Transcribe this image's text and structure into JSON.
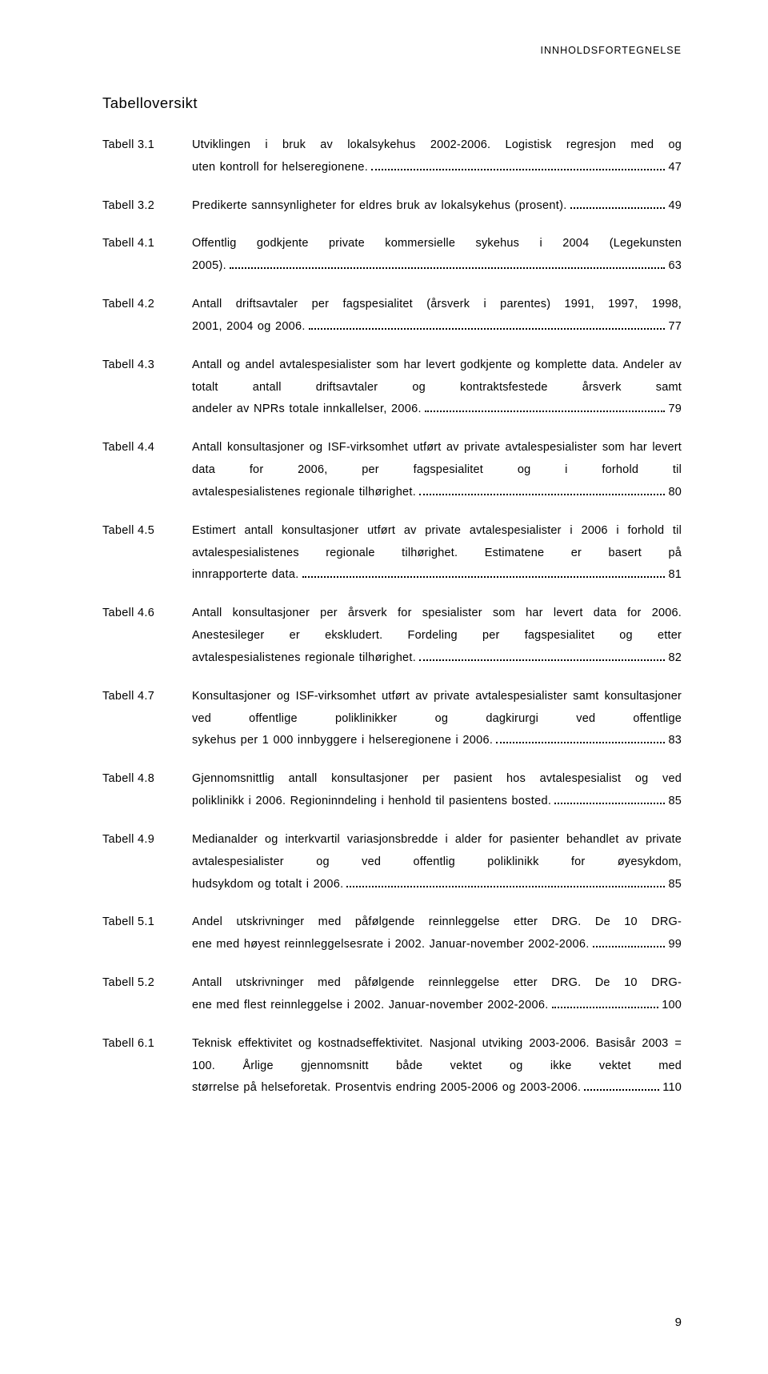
{
  "header": "INNHOLDSFORTEGNELSE",
  "section_title": "Tabelloversikt",
  "page_number": "9",
  "entries": [
    {
      "label": "Tabell 3.1",
      "body": "Utviklingen i bruk av lokalsykehus 2002-2006. Logistisk regresjon med og",
      "last": "uten kontroll for helseregionene.",
      "page": "47"
    },
    {
      "label": "Tabell 3.2",
      "body": "",
      "last": "Predikerte sannsynligheter for eldres bruk av lokalsykehus (prosent).",
      "page": "49"
    },
    {
      "label": "Tabell 4.1",
      "body": "Offentlig godkjente private kommersielle sykehus i 2004 (Legekunsten",
      "last": "2005).",
      "page": "63"
    },
    {
      "label": "Tabell 4.2",
      "body": "Antall driftsavtaler per fagspesialitet (årsverk i parentes) 1991, 1997, 1998,",
      "last": "2001, 2004 og 2006.",
      "page": "77"
    },
    {
      "label": "Tabell 4.3",
      "body": "Antall og andel avtalespesialister som har levert godkjente og komplette data. Andeler av totalt antall driftsavtaler og kontraktsfestede årsverk samt",
      "last": "andeler av NPRs totale innkallelser, 2006. ",
      "page": "79"
    },
    {
      "label": "Tabell 4.4",
      "body": "Antall konsultasjoner og ISF-virksomhet utført av private avtalespesialister som har levert data for 2006, per fagspesialitet og i forhold til",
      "last": "avtalespesialistenes regionale tilhørighet.",
      "page": "80"
    },
    {
      "label": "Tabell 4.5",
      "body": "Estimert antall konsultasjoner utført av private avtalespesialister i 2006 i forhold til avtalespesialistenes regionale tilhørighet. Estimatene er basert på",
      "last": "innrapporterte data.",
      "page": "81"
    },
    {
      "label": "Tabell 4.6",
      "body": "Antall konsultasjoner per årsverk for spesialister som har levert data for 2006. Anestesileger er ekskludert. Fordeling per fagspesialitet og etter",
      "last": "avtalespesialistenes regionale tilhørighet.",
      "page": "82"
    },
    {
      "label": "Tabell 4.7",
      "body": "Konsultasjoner og ISF-virksomhet utført av private avtalespesialister samt konsultasjoner ved offentlige poliklinikker og dagkirurgi ved offentlige",
      "last": "sykehus per 1 000 innbyggere i helseregionene i 2006.",
      "page": "83"
    },
    {
      "label": "Tabell 4.8",
      "body": "Gjennomsnittlig antall konsultasjoner per pasient hos avtalespesialist og ved",
      "last": "poliklinikk i 2006. Regioninndeling i henhold til pasientens bosted.",
      "page": "85"
    },
    {
      "label": "Tabell 4.9",
      "body": "Medianalder og interkvartil variasjonsbredde i alder for pasienter behandlet av private avtalespesialister og ved offentlig poliklinikk for øyesykdom,",
      "last": "hudsykdom og totalt i 2006.",
      "page": "85"
    },
    {
      "label": "Tabell 5.1",
      "body": "Andel utskrivninger med påfølgende reinnleggelse etter DRG. De 10 DRG-",
      "last": "ene med høyest reinnleggelsesrate i 2002. Januar-november 2002-2006.",
      "page": "99"
    },
    {
      "label": "Tabell 5.2",
      "body": "Antall utskrivninger med påfølgende reinnleggelse etter DRG. De 10 DRG-",
      "last": "ene med flest reinnleggelse i 2002. Januar-november 2002-2006.",
      "page": "100"
    },
    {
      "label": "Tabell 6.1",
      "body": "Teknisk effektivitet og kostnadseffektivitet. Nasjonal utviking 2003-2006. Basisår 2003 = 100. Årlige gjennomsnitt både vektet og ikke vektet med",
      "last": "størrelse på helseforetak. Prosentvis endring 2005-2006 og 2003-2006.",
      "page": "110"
    }
  ]
}
